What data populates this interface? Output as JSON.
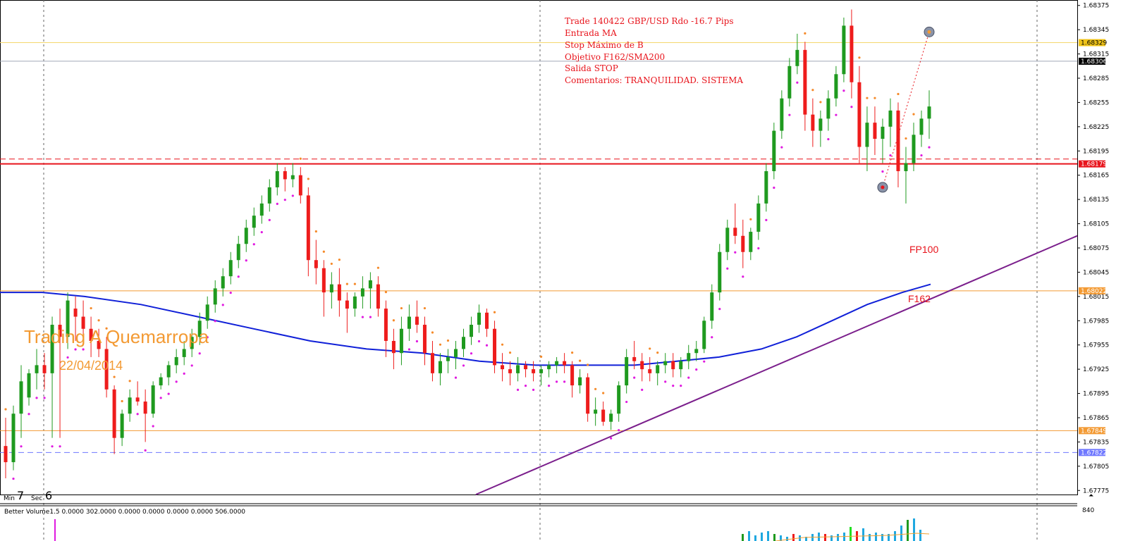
{
  "chart_data": {
    "type": "candlestick",
    "symbol": "GBP/USD",
    "y_axis": {
      "ticks": [
        "1.68375",
        "1.68345",
        "1.68315",
        "1.68285",
        "1.68255",
        "1.68225",
        "1.68195",
        "1.68165",
        "1.68135",
        "1.68105",
        "1.68075",
        "1.68045",
        "1.68015",
        "1.67985",
        "1.67955",
        "1.67925",
        "1.67895",
        "1.67865",
        "1.67835",
        "1.67805",
        "1.67775"
      ],
      "ylim": [
        1.6777,
        1.6838
      ]
    },
    "price_tags": [
      {
        "value": "1.68329",
        "color": "#f0c419",
        "text_color": "#000000",
        "style": "solid"
      },
      {
        "value": "1.68306",
        "color": "#000000",
        "text_color": "#ffffff",
        "style": "solid"
      },
      {
        "value": "1.68179",
        "color": "#e8141c",
        "text_color": "#ffffff",
        "style": "solid"
      },
      {
        "value": "1.68022",
        "color": "#f39a33",
        "text_color": "#ffffff",
        "style": "solid"
      },
      {
        "value": "1.67849",
        "color": "#f39a33",
        "text_color": "#ffffff",
        "style": "solid"
      },
      {
        "value": "1.67822",
        "color": "#6f78ff",
        "text_color": "#ffffff",
        "style": "solid"
      }
    ],
    "horizontal_lines": [
      {
        "price": 1.68329,
        "color": "#f5d76e",
        "dash": false
      },
      {
        "price": 1.68306,
        "color": "#a0a8b8",
        "dash": false
      },
      {
        "price": 1.68185,
        "color": "#e8141c",
        "dash": true
      },
      {
        "price": 1.68179,
        "color": "#e8141c",
        "dash": false
      },
      {
        "price": 1.68022,
        "color": "#f39a33",
        "dash": false
      },
      {
        "price": 1.67849,
        "color": "#f39a33",
        "dash": false
      },
      {
        "price": 1.67822,
        "color": "#6f78ff",
        "dash": true
      }
    ],
    "annotations": [
      "Trade 140422 GBP/USD  Rdo -16.7 Pips",
      "Entrada MA",
      "Stop Máximo de B",
      "Objetivo F162/SMA200",
      "Salida STOP",
      "Comentarios: TRANQUILIDAD. SISTEMA"
    ],
    "watermark_title": "Trading A Quemarropa",
    "watermark_date": "22/04/2014",
    "levels": [
      {
        "label": "FP100",
        "price": 1.6807
      },
      {
        "label": "F162",
        "price": 1.6801
      }
    ],
    "timer": {
      "min_label": "Min",
      "min_value": "7",
      "sec_label": "Sec",
      "sec_value": "6"
    },
    "entry_price": 1.6833,
    "exit_price": 1.6815,
    "candles": [
      [
        1.6783,
        1.67865,
        1.6779,
        1.6781
      ],
      [
        1.6781,
        1.6788,
        1.678,
        1.6787
      ],
      [
        1.6787,
        1.6793,
        1.6784,
        1.6791
      ],
      [
        1.6789,
        1.67925,
        1.6788,
        1.6792
      ],
      [
        1.6792,
        1.6795,
        1.679,
        1.6793
      ],
      [
        1.6793,
        1.67945,
        1.679,
        1.6792
      ],
      [
        1.6792,
        1.6799,
        1.6784,
        1.6798
      ],
      [
        1.6798,
        1.68,
        1.6784,
        1.67965
      ],
      [
        1.67965,
        1.6802,
        1.6795,
        1.6801
      ],
      [
        1.68,
        1.68015,
        1.6796,
        1.6799
      ],
      [
        1.6799,
        1.6801,
        1.6796,
        1.67975
      ],
      [
        1.67975,
        1.6799,
        1.6794,
        1.6796
      ],
      [
        1.6796,
        1.67975,
        1.6794,
        1.6795
      ],
      [
        1.6795,
        1.67965,
        1.6789,
        1.679
      ],
      [
        1.679,
        1.67905,
        1.6782,
        1.6784
      ],
      [
        1.6784,
        1.67875,
        1.6783,
        1.6787
      ],
      [
        1.6787,
        1.679,
        1.6786,
        1.6789
      ],
      [
        1.6789,
        1.6791,
        1.6788,
        1.67885
      ],
      [
        1.67885,
        1.679,
        1.67835,
        1.6787
      ],
      [
        1.6787,
        1.6791,
        1.67865,
        1.67905
      ],
      [
        1.67905,
        1.6792,
        1.679,
        1.67915
      ],
      [
        1.67915,
        1.67935,
        1.67905,
        1.6793
      ],
      [
        1.6793,
        1.6795,
        1.6792,
        1.6794
      ],
      [
        1.6794,
        1.6796,
        1.6793,
        1.6795
      ],
      [
        1.6795,
        1.67975,
        1.6794,
        1.67965
      ],
      [
        1.67965,
        1.67995,
        1.67955,
        1.67985
      ],
      [
        1.67985,
        1.68015,
        1.67975,
        1.68005
      ],
      [
        1.68005,
        1.68035,
        1.67995,
        1.68025
      ],
      [
        1.68025,
        1.6805,
        1.68015,
        1.6804
      ],
      [
        1.6804,
        1.6807,
        1.6803,
        1.6806
      ],
      [
        1.6806,
        1.6809,
        1.6805,
        1.6808
      ],
      [
        1.6808,
        1.6811,
        1.6807,
        1.681
      ],
      [
        1.681,
        1.68125,
        1.6809,
        1.68115
      ],
      [
        1.68115,
        1.6814,
        1.68105,
        1.6813
      ],
      [
        1.6813,
        1.6816,
        1.6812,
        1.6815
      ],
      [
        1.6815,
        1.6818,
        1.6814,
        1.6817
      ],
      [
        1.6817,
        1.68175,
        1.68145,
        1.6816
      ],
      [
        1.6816,
        1.6818,
        1.6815,
        1.68165
      ],
      [
        1.68165,
        1.68175,
        1.6813,
        1.6814
      ],
      [
        1.6814,
        1.6815,
        1.6804,
        1.6806
      ],
      [
        1.6806,
        1.68085,
        1.6803,
        1.6805
      ],
      [
        1.6805,
        1.6806,
        1.6799,
        1.6802
      ],
      [
        1.6802,
        1.68045,
        1.68,
        1.6803
      ],
      [
        1.6803,
        1.6805,
        1.6799,
        1.6801
      ],
      [
        1.6801,
        1.6802,
        1.6797,
        1.68
      ],
      [
        1.68,
        1.6802,
        1.6799,
        1.68015
      ],
      [
        1.68015,
        1.6804,
        1.68,
        1.68025
      ],
      [
        1.68025,
        1.68045,
        1.68,
        1.68035
      ],
      [
        1.6803,
        1.6804,
        1.6799,
        1.68
      ],
      [
        1.68,
        1.6801,
        1.6794,
        1.6796
      ],
      [
        1.6796,
        1.67975,
        1.67925,
        1.67945
      ],
      [
        1.67945,
        1.6799,
        1.6793,
        1.67975
      ],
      [
        1.67975,
        1.68005,
        1.6796,
        1.6799
      ],
      [
        1.6799,
        1.6801,
        1.6797,
        1.6798
      ],
      [
        1.6798,
        1.6799,
        1.6793,
        1.67945
      ],
      [
        1.67945,
        1.6796,
        1.6791,
        1.6792
      ],
      [
        1.6792,
        1.67945,
        1.67905,
        1.67935
      ],
      [
        1.67935,
        1.6795,
        1.6792,
        1.6794
      ],
      [
        1.6794,
        1.6796,
        1.67925,
        1.6795
      ],
      [
        1.6795,
        1.67975,
        1.6794,
        1.67965
      ],
      [
        1.67965,
        1.6799,
        1.67955,
        1.6798
      ],
      [
        1.6798,
        1.68005,
        1.6797,
        1.67995
      ],
      [
        1.67995,
        1.68,
        1.67965,
        1.67975
      ],
      [
        1.67975,
        1.67985,
        1.6792,
        1.6793
      ],
      [
        1.6793,
        1.67945,
        1.6791,
        1.67925
      ],
      [
        1.67925,
        1.67935,
        1.67905,
        1.6792
      ],
      [
        1.6792,
        1.6794,
        1.6791,
        1.6793
      ],
      [
        1.6793,
        1.67935,
        1.67915,
        1.67925
      ],
      [
        1.67925,
        1.67935,
        1.6791,
        1.6792
      ],
      [
        1.6792,
        1.6793,
        1.67905,
        1.67925
      ],
      [
        1.67925,
        1.67935,
        1.67915,
        1.6793
      ],
      [
        1.6793,
        1.6794,
        1.6792,
        1.67935
      ],
      [
        1.67935,
        1.67945,
        1.6792,
        1.6793
      ],
      [
        1.6793,
        1.67935,
        1.6789,
        1.67905
      ],
      [
        1.67905,
        1.67925,
        1.67895,
        1.67915
      ],
      [
        1.67915,
        1.6792,
        1.6786,
        1.6787
      ],
      [
        1.6787,
        1.6789,
        1.67855,
        1.67875
      ],
      [
        1.67875,
        1.67885,
        1.67855,
        1.6786
      ],
      [
        1.6786,
        1.67875,
        1.6785,
        1.6787
      ],
      [
        1.6787,
        1.6791,
        1.6786,
        1.67905
      ],
      [
        1.67905,
        1.6795,
        1.67895,
        1.6794
      ],
      [
        1.6794,
        1.6796,
        1.67925,
        1.67935
      ],
      [
        1.67935,
        1.67945,
        1.6791,
        1.67925
      ],
      [
        1.67925,
        1.6794,
        1.6791,
        1.6792
      ],
      [
        1.6792,
        1.67935,
        1.67905,
        1.6793
      ],
      [
        1.6793,
        1.67945,
        1.6792,
        1.67935
      ],
      [
        1.67935,
        1.67945,
        1.67915,
        1.67925
      ],
      [
        1.67925,
        1.6794,
        1.67915,
        1.67935
      ],
      [
        1.67935,
        1.67955,
        1.67925,
        1.67945
      ],
      [
        1.67945,
        1.6796,
        1.67935,
        1.6795
      ],
      [
        1.6795,
        1.6799,
        1.67945,
        1.67985
      ],
      [
        1.67985,
        1.6803,
        1.67975,
        1.6802
      ],
      [
        1.6802,
        1.6808,
        1.6801,
        1.6807
      ],
      [
        1.6807,
        1.6811,
        1.6806,
        1.681
      ],
      [
        1.681,
        1.6813,
        1.6808,
        1.6809
      ],
      [
        1.6809,
        1.6811,
        1.6805,
        1.6807
      ],
      [
        1.6807,
        1.681,
        1.6806,
        1.68095
      ],
      [
        1.68095,
        1.6814,
        1.68085,
        1.6813
      ],
      [
        1.6813,
        1.6818,
        1.6812,
        1.6817
      ],
      [
        1.6817,
        1.6823,
        1.6816,
        1.6822
      ],
      [
        1.6822,
        1.6827,
        1.6821,
        1.6826
      ],
      [
        1.6826,
        1.6831,
        1.6825,
        1.683
      ],
      [
        1.683,
        1.6834,
        1.6829,
        1.6832
      ],
      [
        1.6832,
        1.6833,
        1.6822,
        1.6824
      ],
      [
        1.6824,
        1.6826,
        1.682,
        1.6822
      ],
      [
        1.6822,
        1.68245,
        1.682,
        1.68235
      ],
      [
        1.68235,
        1.6827,
        1.6822,
        1.6826
      ],
      [
        1.6826,
        1.683,
        1.6825,
        1.6829
      ],
      [
        1.6829,
        1.6836,
        1.6828,
        1.6835
      ],
      [
        1.6835,
        1.6837,
        1.6826,
        1.6828
      ],
      [
        1.6828,
        1.683,
        1.6818,
        1.682
      ],
      [
        1.682,
        1.6825,
        1.6817,
        1.6823
      ],
      [
        1.6823,
        1.6825,
        1.6819,
        1.6821
      ],
      [
        1.6821,
        1.68235,
        1.6818,
        1.68225
      ],
      [
        1.68225,
        1.6826,
        1.682,
        1.68245
      ],
      [
        1.68245,
        1.68255,
        1.6815,
        1.6817
      ],
      [
        1.6817,
        1.682,
        1.6813,
        1.6818
      ],
      [
        1.6818,
        1.6823,
        1.6817,
        1.68215
      ],
      [
        1.68215,
        1.68245,
        1.682,
        1.68235
      ],
      [
        1.68235,
        1.6827,
        1.6821,
        1.6825
      ]
    ],
    "sma200": [
      [
        0,
        1.6802
      ],
      [
        60,
        1.6802
      ],
      [
        120,
        1.68015
      ],
      [
        200,
        1.68005
      ],
      [
        280,
        1.6799
      ],
      [
        360,
        1.67975
      ],
      [
        440,
        1.6796
      ],
      [
        520,
        1.6795
      ],
      [
        600,
        1.67945
      ],
      [
        680,
        1.67935
      ],
      [
        760,
        1.6793
      ],
      [
        840,
        1.6793
      ],
      [
        900,
        1.6793
      ],
      [
        960,
        1.67935
      ],
      [
        1020,
        1.6794
      ],
      [
        1080,
        1.6795
      ],
      [
        1130,
        1.67965
      ],
      [
        1180,
        1.67985
      ],
      [
        1230,
        1.68005
      ],
      [
        1280,
        1.6802
      ],
      [
        1320,
        1.6803
      ]
    ],
    "trendline": [
      [
        675,
        1.6777
      ],
      [
        1528,
        1.6809
      ]
    ],
    "volume_panel": {
      "title": "Better Volume1.5 0.0000 302.0000 0.0000 0.0000 0.0000 0.0000 506.0000",
      "max_label": "840"
    }
  }
}
